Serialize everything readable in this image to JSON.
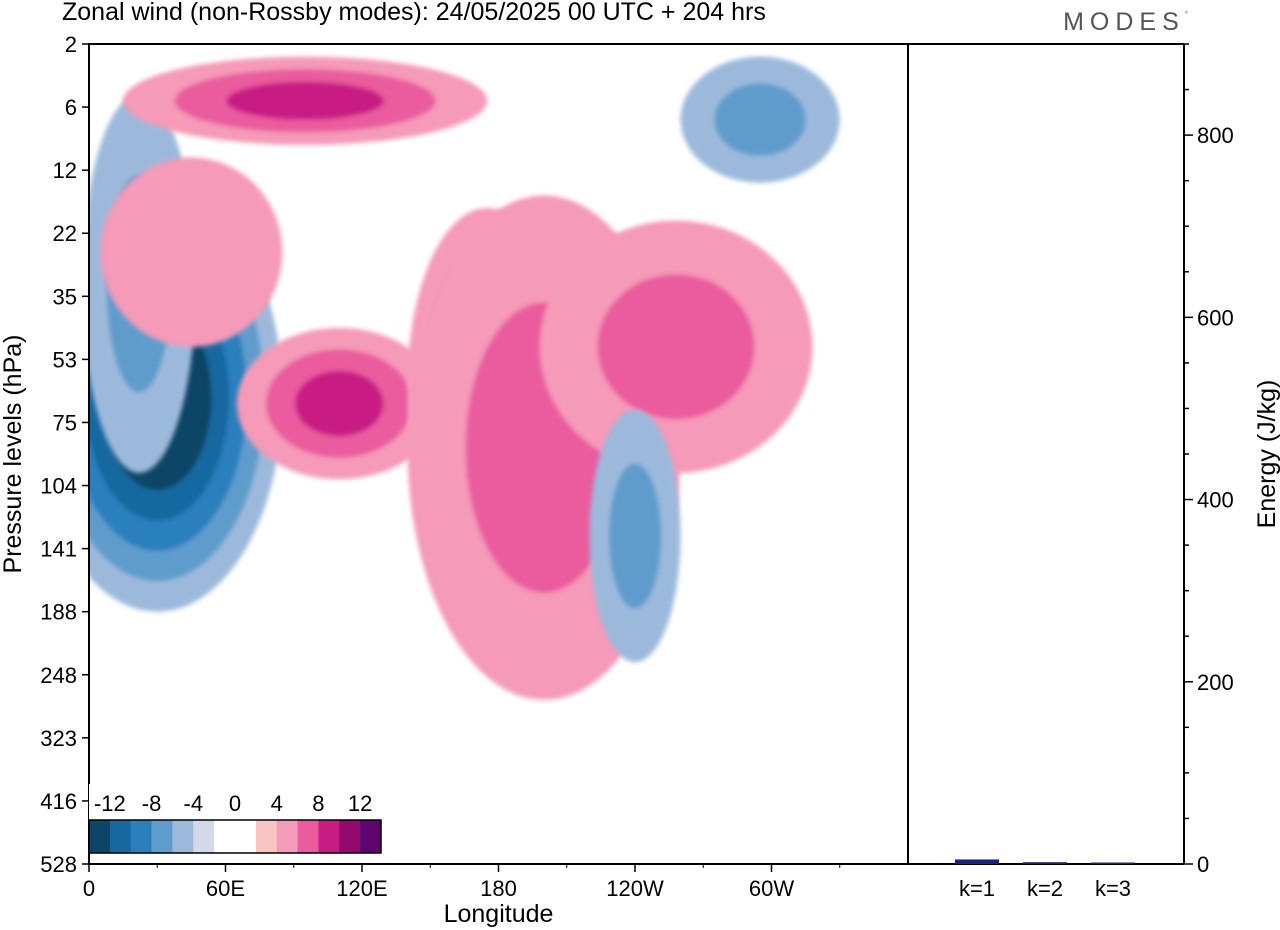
{
  "header": {
    "title": "Zonal wind (non-Rossby modes):  24/05/2025  00 UTC  + 204 hrs",
    "brand": "MODES",
    "brand_mark": "°"
  },
  "chart_data": [
    {
      "type": "heatmap",
      "title": "Zonal wind (non-Rossby modes):  24/05/2025  00 UTC  + 204 hrs",
      "xlabel": "Longitude",
      "ylabel": "Pressure levels (hPa)",
      "x_ticks": [
        "0",
        "60E",
        "120E",
        "180",
        "120W",
        "60W"
      ],
      "y_ticks": [
        "2",
        "6",
        "12",
        "22",
        "35",
        "53",
        "75",
        "104",
        "141",
        "188",
        "248",
        "323",
        "416",
        "528"
      ],
      "colorbar": {
        "labels": [
          "-12",
          "-8",
          "-4",
          "0",
          "4",
          "8",
          "12"
        ],
        "colors": [
          "#0d4566",
          "#1767a0",
          "#2a7fbd",
          "#5e9ccc",
          "#9cb9dc",
          "#d4d9ea",
          "#ffffff",
          "#ffffff",
          "#f9c4c4",
          "#f59ab8",
          "#ea5c9e",
          "#c81e84",
          "#93096e",
          "#5e0570"
        ]
      },
      "features": [
        {
          "lon": 30,
          "level": 5.6,
          "value": -14,
          "rx": 55,
          "ry": 3.4
        },
        {
          "lon": 22,
          "level": 3.8,
          "value": -7,
          "rx": 25,
          "ry": 3.0
        },
        {
          "lon": 110,
          "level": 5.7,
          "value": 9,
          "rx": 45,
          "ry": 1.2
        },
        {
          "lon": 95,
          "level": 0.9,
          "value": 8,
          "rx": 80,
          "ry": 0.7
        },
        {
          "lon": 175,
          "level": 5.4,
          "value": 11,
          "rx": 35,
          "ry": 2.8
        },
        {
          "lon": 200,
          "level": 6.4,
          "value": 6,
          "rx": 60,
          "ry": 4.0
        },
        {
          "lon": 258,
          "level": 4.8,
          "value": 6,
          "rx": 60,
          "ry": 2.0
        },
        {
          "lon": 240,
          "level": 7.8,
          "value": -7,
          "rx": 20,
          "ry": 2.0
        },
        {
          "lon": 295,
          "level": 1.2,
          "value": -6,
          "rx": 35,
          "ry": 1.0
        },
        {
          "lon": 45,
          "level": 3.3,
          "value": 4,
          "rx": 40,
          "ry": 1.5
        }
      ]
    },
    {
      "type": "bar",
      "categories": [
        "k=1",
        "k=2",
        "k=3"
      ],
      "values": [
        5,
        2,
        0.5
      ],
      "ylabel": "Energy (J/kg)",
      "ylim": [
        0,
        900
      ],
      "y_ticks": [
        0,
        200,
        400,
        600,
        800
      ],
      "bar_color": "#1a237e"
    }
  ]
}
